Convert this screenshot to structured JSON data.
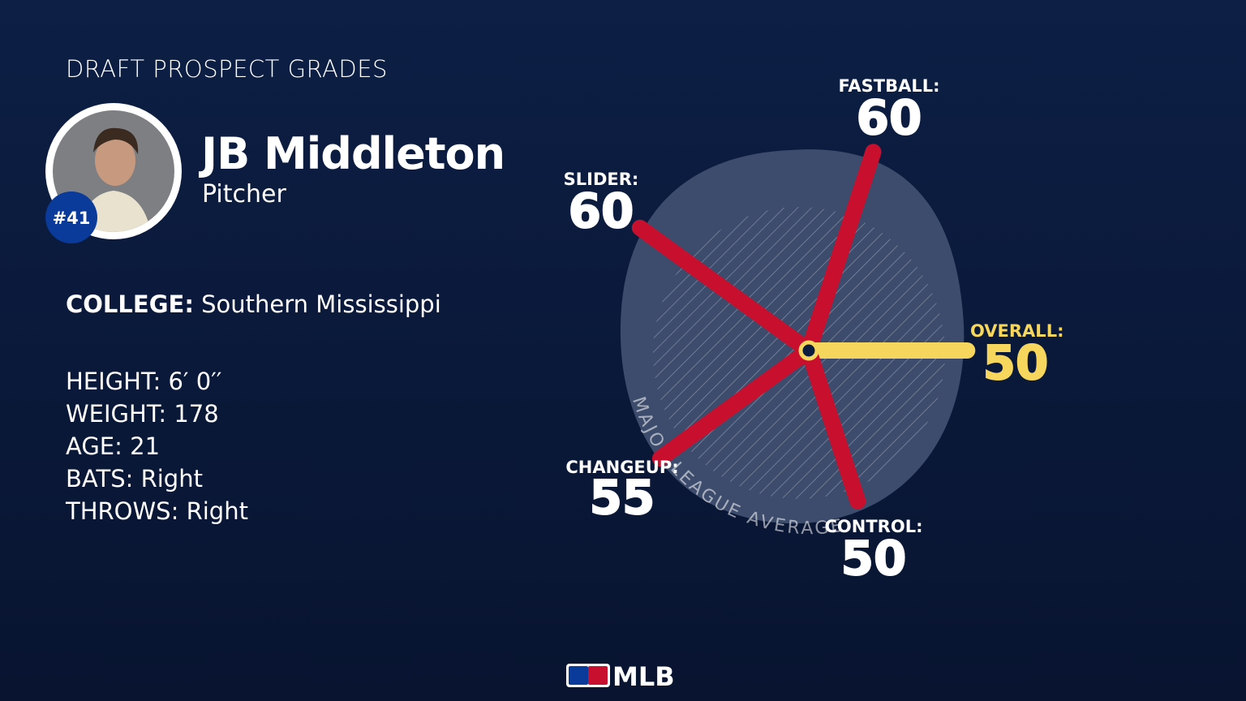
{
  "header": {
    "title": "DRAFT PROSPECT GRADES"
  },
  "player": {
    "name": "JB Middleton",
    "position": "Pitcher",
    "rank": "#41"
  },
  "college": {
    "label": "COLLEGE:",
    "value": "Southern Mississippi"
  },
  "bio": [
    {
      "label": "HEIGHT:",
      "value": "6′ 0′′"
    },
    {
      "label": "WEIGHT:",
      "value": "178"
    },
    {
      "label": "AGE:",
      "value": "21"
    },
    {
      "label": "BATS:",
      "value": "Right"
    },
    {
      "label": "THROWS:",
      "value": "Right"
    }
  ],
  "grades": [
    {
      "label": "FASTBALL:",
      "value": 60,
      "color": "#c8102e"
    },
    {
      "label": "OVERALL:",
      "value": 50,
      "color": "#f6d65c"
    },
    {
      "label": "CONTROL:",
      "value": 50,
      "color": "#c8102e"
    },
    {
      "label": "CHANGEUP:",
      "value": 55,
      "color": "#c8102e"
    },
    {
      "label": "SLIDER:",
      "value": 60,
      "color": "#c8102e"
    }
  ],
  "average_label": "MAJOR LEAGUE AVERAGE",
  "logo": "MLB"
}
